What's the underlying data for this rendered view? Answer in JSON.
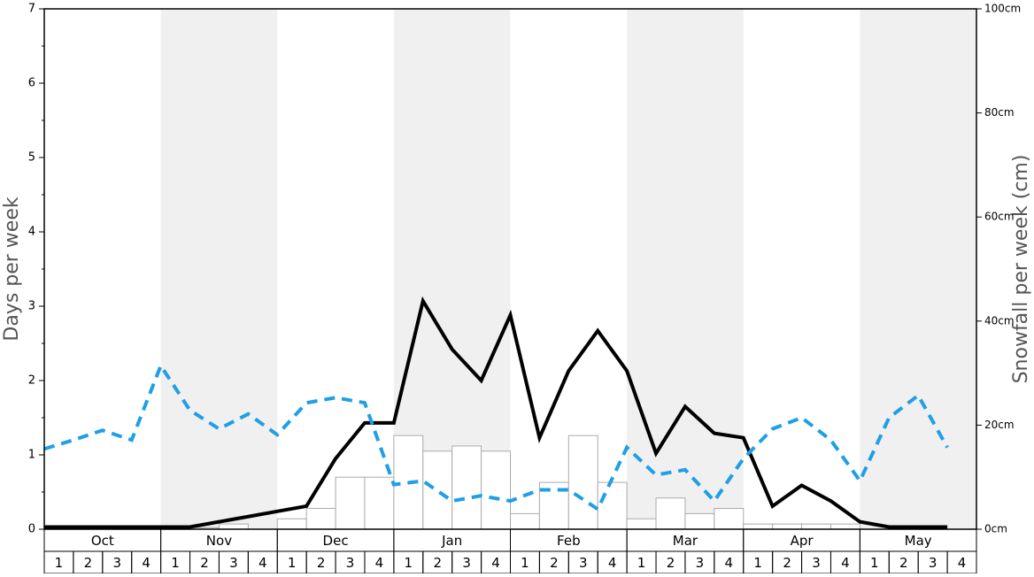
{
  "chart_data": {
    "type": "combo",
    "ylabel": "Days per week",
    "y2label": "Snowfall per week (cm)",
    "months": [
      "Oct",
      "Nov",
      "Dec",
      "Jan",
      "Feb",
      "Mar",
      "Apr",
      "May"
    ],
    "categories": [
      "1",
      "2",
      "3",
      "4",
      "1",
      "2",
      "3",
      "4",
      "1",
      "2",
      "3",
      "4",
      "1",
      "2",
      "3",
      "4",
      "1",
      "2",
      "3",
      "4",
      "1",
      "2",
      "3",
      "4",
      "1",
      "2",
      "3",
      "4",
      "1",
      "2",
      "3",
      "4"
    ],
    "ylim": [
      0,
      7
    ],
    "yticks": [
      0,
      1,
      2,
      3,
      4,
      5,
      6,
      7
    ],
    "y2lim": [
      0,
      100
    ],
    "y2ticks": [
      {
        "value": 0,
        "label": "0cm"
      },
      {
        "value": 20,
        "label": "20cm"
      },
      {
        "value": 40,
        "label": "40cm"
      },
      {
        "value": 60,
        "label": "60cm"
      },
      {
        "value": 80,
        "label": "80cm"
      },
      {
        "value": 100,
        "label": "100cm"
      }
    ],
    "series": [
      {
        "type": "bar",
        "axis": "y2",
        "color": "#ffffff",
        "values": [
          0,
          0,
          0,
          0,
          0,
          0.3,
          1,
          0,
          2,
          4,
          10,
          10,
          18,
          15,
          16,
          15,
          3,
          9,
          18,
          9,
          2,
          6,
          3,
          4,
          1,
          1,
          1,
          1,
          0,
          0,
          0,
          0
        ]
      },
      {
        "type": "line",
        "axis": "y",
        "color": "#000000",
        "dashed": false,
        "values": [
          0.03,
          0.03,
          0.03,
          0.03,
          0.03,
          0.03,
          0.1,
          0.17,
          0.24,
          0.31,
          0.95,
          1.43,
          1.43,
          3.07,
          2.42,
          2.0,
          2.88,
          1.23,
          2.13,
          2.67,
          2.13,
          1.02,
          1.65,
          1.29,
          1.23,
          0.31,
          0.59,
          0.38,
          0.1,
          0.03,
          0.03,
          0.03
        ]
      },
      {
        "type": "line",
        "axis": "y",
        "color": "#1e9fe6",
        "dashed": true,
        "values": [
          1.08,
          1.2,
          1.33,
          1.2,
          2.2,
          1.6,
          1.35,
          1.55,
          1.27,
          1.7,
          1.77,
          1.7,
          0.6,
          0.65,
          0.38,
          0.45,
          0.38,
          0.53,
          0.53,
          0.27,
          1.1,
          0.73,
          0.8,
          0.38,
          0.95,
          1.35,
          1.5,
          1.2,
          0.65,
          1.5,
          1.8,
          1.1
        ]
      }
    ]
  }
}
